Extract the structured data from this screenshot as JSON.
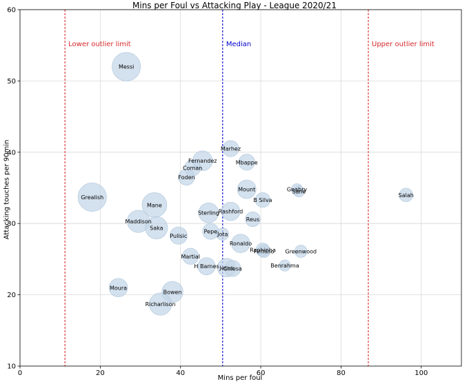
{
  "chart_data": {
    "type": "scatter",
    "title": "Mins per Foul vs Attacking Play - League 2020/21",
    "xlabel": "Mins per foul",
    "ylabel": "Attacking touches per 90min",
    "xlim": [
      0,
      110
    ],
    "ylim": [
      10,
      60
    ],
    "xticks": [
      0,
      20,
      40,
      60,
      80,
      100
    ],
    "yticks": [
      10,
      20,
      30,
      40,
      50,
      60
    ],
    "grid": true,
    "reference_lines": [
      {
        "label": "Lower outlier limit",
        "x": 11.2,
        "color": "#d62728"
      },
      {
        "label": "Median",
        "x": 50.5,
        "color": "#0000cc"
      },
      {
        "label": "Upper outlier limit",
        "x": 86.8,
        "color": "#d62728"
      }
    ],
    "points": [
      {
        "name": "Messi",
        "x": 26.5,
        "y": 52.0,
        "size": 2.3
      },
      {
        "name": "Grealish",
        "x": 18.0,
        "y": 33.7,
        "size": 2.3
      },
      {
        "name": "Marhez",
        "x": 52.5,
        "y": 40.5,
        "size": 1.3
      },
      {
        "name": "Fernandez",
        "x": 45.5,
        "y": 38.8,
        "size": 1.6
      },
      {
        "name": "Mbappe",
        "x": 56.5,
        "y": 38.6,
        "size": 1.3
      },
      {
        "name": "Coman",
        "x": 43.0,
        "y": 37.8,
        "size": 1.3
      },
      {
        "name": "Foden",
        "x": 41.5,
        "y": 36.5,
        "size": 1.3
      },
      {
        "name": "Mount",
        "x": 56.5,
        "y": 34.8,
        "size": 1.5
      },
      {
        "name": "Gnabry",
        "x": 69.0,
        "y": 34.8,
        "size": 0.9
      },
      {
        "name": "Sane",
        "x": 69.5,
        "y": 34.5,
        "size": 0.9
      },
      {
        "name": "Salah",
        "x": 96.2,
        "y": 34.0,
        "size": 1.1
      },
      {
        "name": "B Silva",
        "x": 60.5,
        "y": 33.3,
        "size": 1.2
      },
      {
        "name": "Mane",
        "x": 33.5,
        "y": 32.6,
        "size": 2.0
      },
      {
        "name": "Rashford",
        "x": 52.5,
        "y": 31.7,
        "size": 1.5
      },
      {
        "name": "Sterling",
        "x": 47.0,
        "y": 31.5,
        "size": 1.6
      },
      {
        "name": "Reus",
        "x": 58.0,
        "y": 30.6,
        "size": 1.2
      },
      {
        "name": "Maddison",
        "x": 29.5,
        "y": 30.3,
        "size": 1.8
      },
      {
        "name": "Saka",
        "x": 34.0,
        "y": 29.4,
        "size": 1.8
      },
      {
        "name": "Pepe",
        "x": 47.5,
        "y": 28.9,
        "size": 1.3
      },
      {
        "name": "Jota",
        "x": 50.5,
        "y": 28.5,
        "size": 1.0
      },
      {
        "name": "Pulisic",
        "x": 39.5,
        "y": 28.3,
        "size": 1.4
      },
      {
        "name": "Ronaldo",
        "x": 55.0,
        "y": 27.2,
        "size": 1.5
      },
      {
        "name": "Raphinha",
        "x": 60.5,
        "y": 26.3,
        "size": 1.1
      },
      {
        "name": "Firmino",
        "x": 60.8,
        "y": 26.1,
        "size": 1.0
      },
      {
        "name": "Greenwood",
        "x": 70.0,
        "y": 26.1,
        "size": 1.0
      },
      {
        "name": "Martial",
        "x": 42.5,
        "y": 25.4,
        "size": 1.3
      },
      {
        "name": "Benrahma",
        "x": 66.0,
        "y": 24.1,
        "size": 0.9
      },
      {
        "name": "H Barnes",
        "x": 46.5,
        "y": 24.0,
        "size": 1.4
      },
      {
        "name": "Jesus",
        "x": 51.5,
        "y": 23.8,
        "size": 1.5
      },
      {
        "name": "Chiesa",
        "x": 53.0,
        "y": 23.7,
        "size": 1.3
      },
      {
        "name": "Moura",
        "x": 24.5,
        "y": 21.0,
        "size": 1.5
      },
      {
        "name": "Bowen",
        "x": 38.0,
        "y": 20.4,
        "size": 1.7
      },
      {
        "name": "Richarlison",
        "x": 35.0,
        "y": 18.7,
        "size": 1.8
      }
    ]
  }
}
